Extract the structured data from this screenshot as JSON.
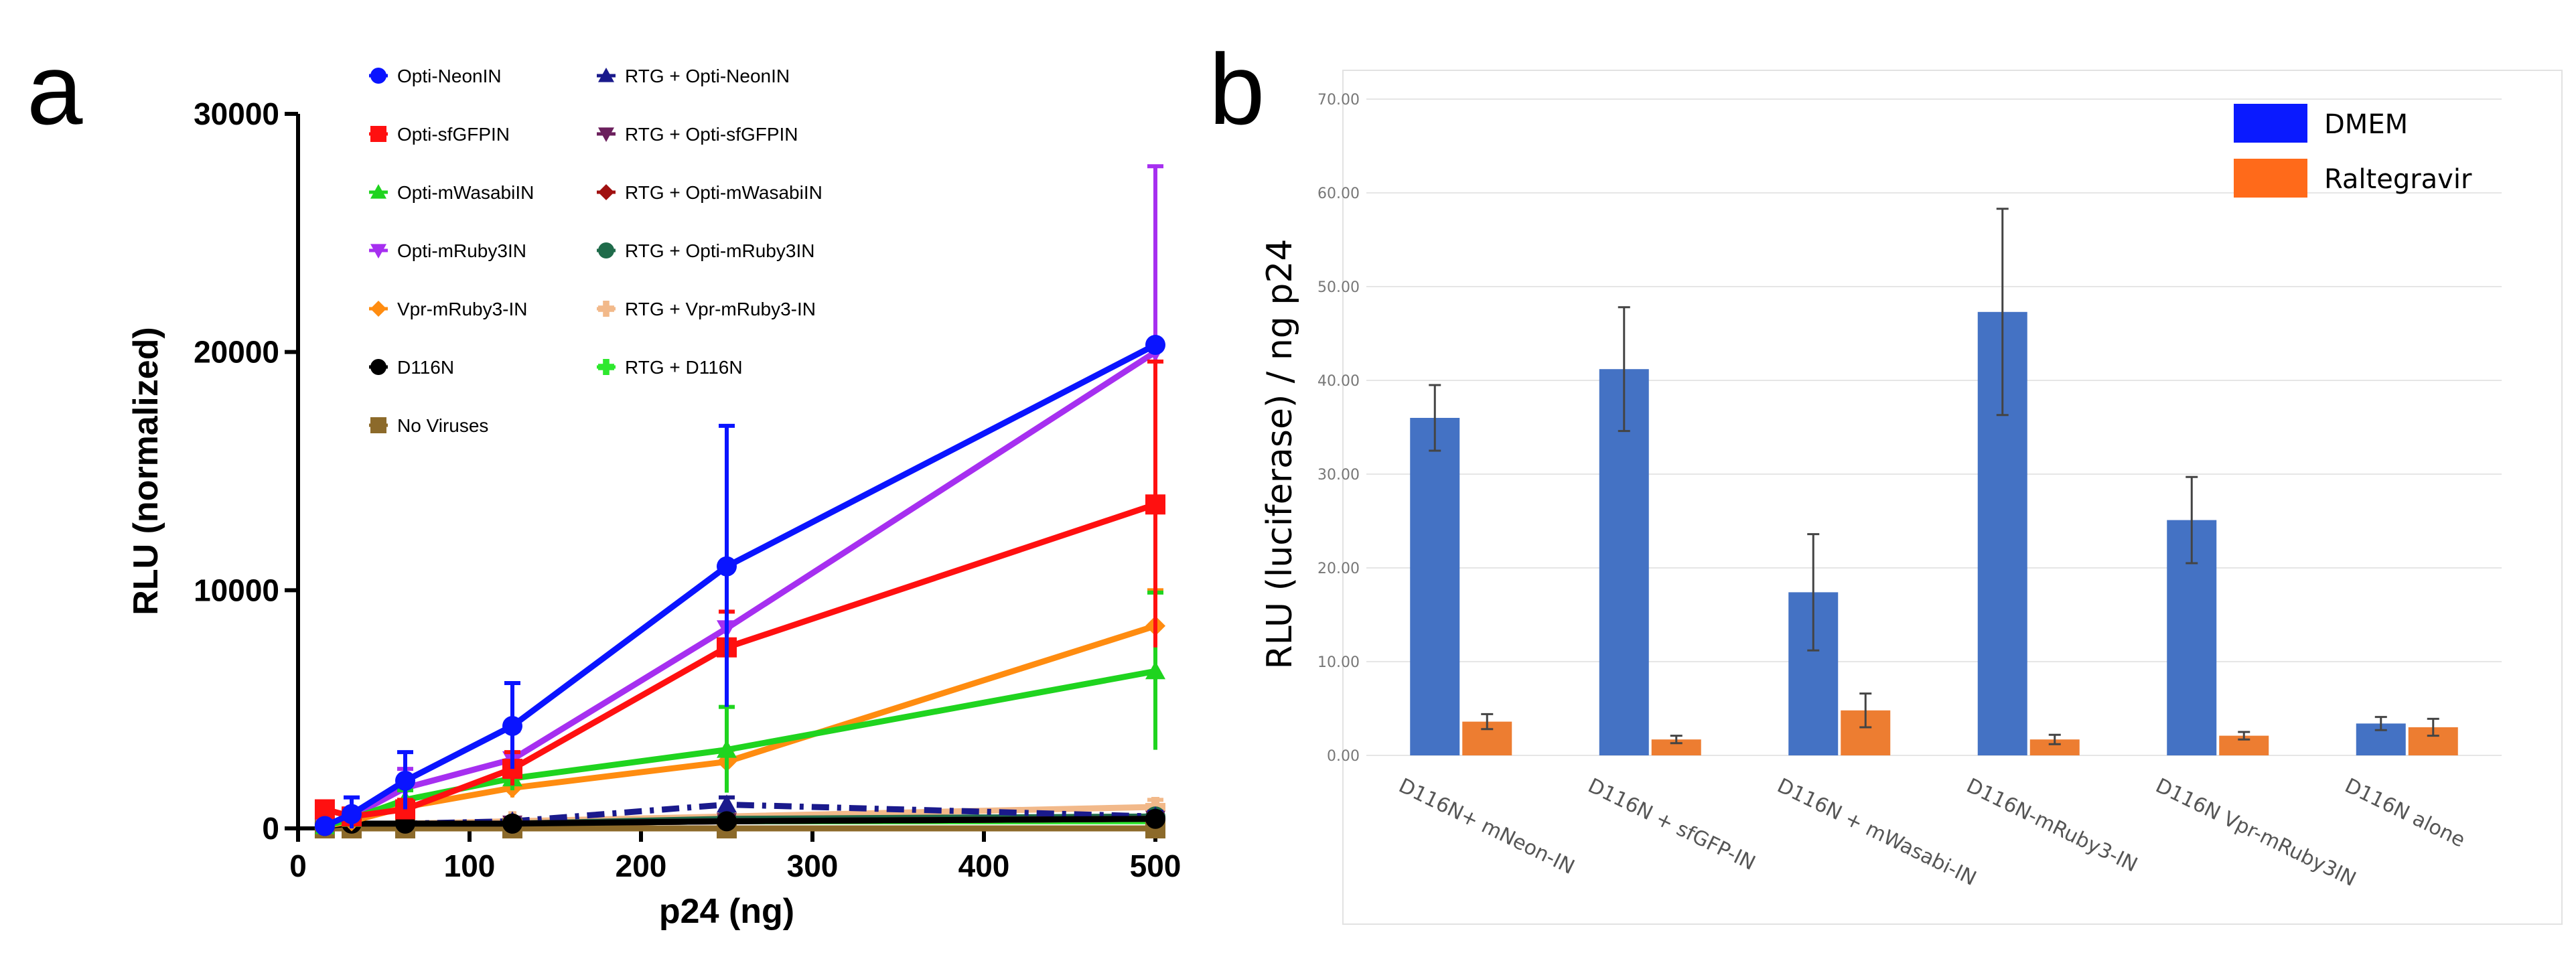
{
  "chart_data": [
    {
      "panel_label": "a",
      "type": "line",
      "xlabel": "p24 (ng)",
      "ylabel": "RLU (normalized)",
      "xlim": [
        0,
        500
      ],
      "ylim": [
        0,
        30000
      ],
      "x_ticks": [
        "0",
        "100",
        "200",
        "300",
        "400",
        "500"
      ],
      "y_ticks": [
        "0",
        "10000",
        "20000",
        "30000"
      ],
      "legend_position": "top-left, two columns",
      "x": [
        15.6,
        31.25,
        62.5,
        125,
        250,
        500
      ],
      "series": [
        {
          "name": "Opti-NeonIN",
          "color": "#0a14ff",
          "marker": "circle",
          "values": [
            100,
            600,
            2000,
            4300,
            11000,
            20300
          ],
          "error": [
            150,
            700,
            1200,
            1800,
            5900,
            0
          ]
        },
        {
          "name": "Opti-sfGFPIN",
          "color": "#ff1010",
          "marker": "square",
          "values": [
            800,
            500,
            800,
            2500,
            7600,
            13600
          ],
          "error": [
            300,
            200,
            400,
            700,
            1500,
            6000
          ]
        },
        {
          "name": "Opti-mWasabiIN",
          "color": "#1fd41f",
          "marker": "triangle-up",
          "values": [
            100,
            400,
            1200,
            2100,
            3300,
            6600
          ],
          "error": [
            100,
            200,
            400,
            500,
            1800,
            3300
          ]
        },
        {
          "name": "Opti-mRuby3IN",
          "color": "#a62ff0",
          "marker": "triangle-down",
          "values": [
            100,
            500,
            1700,
            2900,
            8400,
            20000
          ],
          "error": [
            100,
            300,
            800,
            1200,
            2500,
            7800
          ]
        },
        {
          "name": "Vpr-mRuby3-IN",
          "color": "#ff8c10",
          "marker": "diamond",
          "values": [
            100,
            300,
            900,
            1700,
            2800,
            8500
          ],
          "error": [
            100,
            150,
            300,
            400,
            500,
            1500
          ]
        },
        {
          "name": "D116N",
          "color": "#000000",
          "marker": "circle",
          "values": [
            100,
            200,
            200,
            200,
            300,
            400
          ],
          "error": [
            50,
            50,
            50,
            50,
            100,
            100
          ]
        },
        {
          "name": "No Viruses",
          "color": "#8c6a2a",
          "marker": "square",
          "values": [
            0,
            0,
            0,
            0,
            0,
            0
          ],
          "error": [
            0,
            0,
            0,
            0,
            0,
            0
          ]
        },
        {
          "name": "RTG + Opti-NeonIN",
          "color": "#1a1a8c",
          "marker": "triangle-up",
          "line_style": "dash-dot",
          "values": [
            100,
            150,
            200,
            300,
            1000,
            500
          ],
          "error": [
            50,
            50,
            100,
            100,
            300,
            200
          ]
        },
        {
          "name": "RTG + Opti-sfGFPIN",
          "color": "#6b1f5c",
          "marker": "triangle-down",
          "values": [
            100,
            100,
            150,
            200,
            300,
            400
          ],
          "error": [
            50,
            50,
            50,
            50,
            100,
            100
          ]
        },
        {
          "name": "RTG + Opti-mWasabiIN",
          "color": "#a01010",
          "marker": "diamond",
          "values": [
            100,
            100,
            150,
            200,
            300,
            400
          ],
          "error": [
            50,
            50,
            50,
            50,
            100,
            100
          ]
        },
        {
          "name": "RTG + Opti-mRuby3IN",
          "color": "#1f6b4a",
          "marker": "circle",
          "values": [
            100,
            100,
            150,
            200,
            400,
            500
          ],
          "error": [
            50,
            50,
            50,
            50,
            100,
            100
          ]
        },
        {
          "name": "RTG + Vpr-mRuby3-IN",
          "color": "#f2b98a",
          "marker": "plus",
          "values": [
            100,
            150,
            200,
            300,
            500,
            900
          ],
          "error": [
            50,
            50,
            100,
            100,
            200,
            300
          ]
        },
        {
          "name": "RTG + D116N",
          "color": "#2ee82e",
          "marker": "plus",
          "values": [
            100,
            100,
            100,
            200,
            300,
            300
          ],
          "error": [
            50,
            50,
            50,
            50,
            100,
            100
          ]
        }
      ]
    },
    {
      "panel_label": "b",
      "type": "bar",
      "ylabel": "RLU (luciferase) / ng p24",
      "ylim": [
        0,
        70
      ],
      "y_ticks": [
        "0.00",
        "10.00",
        "20.00",
        "30.00",
        "40.00",
        "50.00",
        "60.00",
        "70.00"
      ],
      "grid": true,
      "legend_position": "top-right",
      "categories": [
        "D116N+ mNeon-IN",
        "D116N + sfGFP-IN",
        "D116N + mWasabi-IN",
        "D116N-mRuby3-IN",
        "D116N Vpr-mRuby3IN",
        "D116N alone"
      ],
      "series": [
        {
          "name": "DMEM",
          "color": "#4472c4",
          "legend_color": "#0a1aff",
          "values": [
            36.0,
            41.2,
            17.4,
            47.3,
            25.1,
            3.4
          ],
          "error": [
            3.5,
            6.6,
            6.2,
            11.0,
            4.6,
            0.7
          ]
        },
        {
          "name": "Raltegravir",
          "color": "#ed7d31",
          "legend_color": "#ff6a1a",
          "values": [
            3.6,
            1.7,
            4.8,
            1.7,
            2.1,
            3.0
          ],
          "error": [
            0.8,
            0.4,
            1.8,
            0.5,
            0.4,
            0.9
          ]
        }
      ]
    }
  ]
}
